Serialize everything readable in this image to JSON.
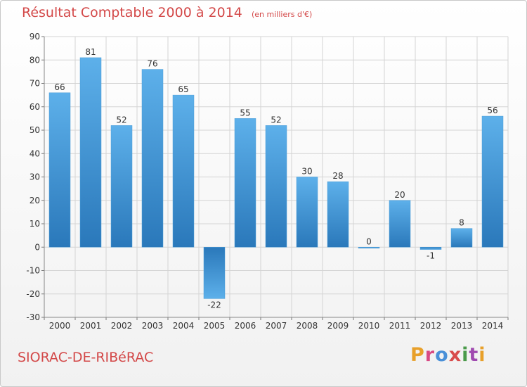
{
  "header": {
    "title": "Résultat Comptable 2000 à 2014",
    "unit": "(en milliers d'€)"
  },
  "footer": {
    "commune": "SIORAC-DE-RIBéRAC",
    "brand": "Proxiti",
    "brand_letters": [
      "P",
      "r",
      "o",
      "x",
      "i",
      "t",
      "i"
    ],
    "brand_colors": [
      "#e8a02a",
      "#d84a84",
      "#4a90d8",
      "#d84a4a",
      "#4a9a4a",
      "#a04ab0",
      "#e8a02a"
    ]
  },
  "colors": {
    "title": "#d34848",
    "bar_light": "#5db0ea",
    "bar_dark": "#2a78ba",
    "grid": "#d4d4d4",
    "axis_text": "#333333"
  },
  "chart_data": {
    "type": "bar",
    "title": "Résultat Comptable 2000 à 2014",
    "subtitle": "(en milliers d'€)",
    "categories": [
      "2000",
      "2001",
      "2002",
      "2003",
      "2004",
      "2005",
      "2006",
      "2007",
      "2008",
      "2009",
      "2010",
      "2011",
      "2012",
      "2013",
      "2014"
    ],
    "values": [
      66,
      81,
      52,
      76,
      65,
      -22,
      55,
      52,
      30,
      28,
      0,
      20,
      -1,
      8,
      56
    ],
    "value_labels": [
      "66",
      "81",
      "52",
      "76",
      "65",
      "-22",
      "55",
      "52",
      "30",
      "28",
      "0",
      "20",
      "-1",
      "8",
      "56"
    ],
    "ylim": [
      -30,
      90
    ],
    "yticks": [
      -30,
      -20,
      -10,
      0,
      10,
      20,
      30,
      40,
      50,
      60,
      70,
      80,
      90
    ],
    "grid": true,
    "legend": "none",
    "xlabel": "",
    "ylabel": ""
  }
}
